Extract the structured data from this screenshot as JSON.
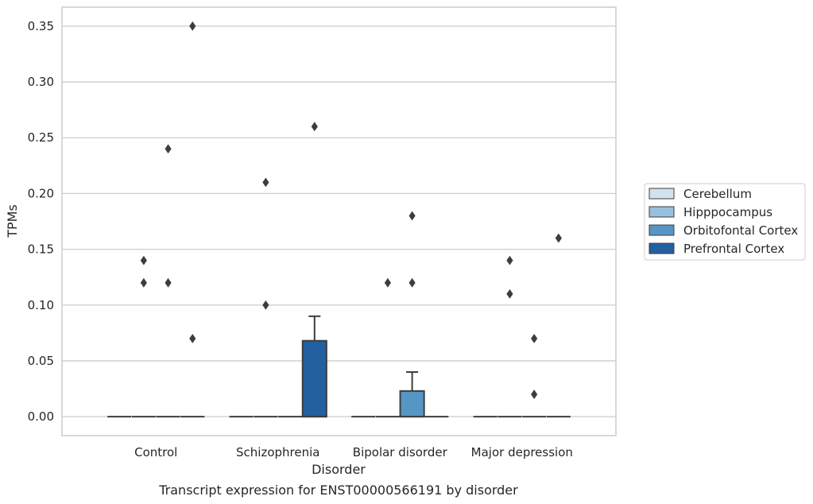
{
  "chart_data": {
    "type": "box",
    "title": "",
    "caption": "Transcript expression for ENST00000566191 by disorder",
    "xlabel": "Disorder",
    "ylabel": "TPMs",
    "ylim": [
      -0.017,
      0.367
    ],
    "yticks": [
      0.0,
      0.05,
      0.1,
      0.15,
      0.2,
      0.25,
      0.3,
      0.35
    ],
    "ytick_labels": [
      "0.00",
      "0.05",
      "0.10",
      "0.15",
      "0.20",
      "0.25",
      "0.30",
      "0.35"
    ],
    "grid": true,
    "legend_position": "right",
    "categories": [
      "Control",
      "Schizophrenia",
      "Bipolar disorder",
      "Major depression"
    ],
    "series": [
      {
        "name": "Cerebellum",
        "color": "#d2e1ef",
        "boxes": [
          {
            "q1": 0,
            "median": 0,
            "q3": 0,
            "whisker_low": 0,
            "whisker_high": 0,
            "outliers": []
          },
          {
            "q1": 0,
            "median": 0,
            "q3": 0,
            "whisker_low": 0,
            "whisker_high": 0,
            "outliers": []
          },
          {
            "q1": 0,
            "median": 0,
            "q3": 0,
            "whisker_low": 0,
            "whisker_high": 0,
            "outliers": []
          },
          {
            "q1": 0,
            "median": 0,
            "q3": 0,
            "whisker_low": 0,
            "whisker_high": 0,
            "outliers": []
          }
        ]
      },
      {
        "name": "Hipppocampus",
        "color": "#98c0dc",
        "boxes": [
          {
            "q1": 0,
            "median": 0,
            "q3": 0,
            "whisker_low": 0,
            "whisker_high": 0,
            "outliers": [
              0.14,
              0.12
            ]
          },
          {
            "q1": 0,
            "median": 0,
            "q3": 0,
            "whisker_low": 0,
            "whisker_high": 0,
            "outliers": [
              0.1,
              0.21
            ]
          },
          {
            "q1": 0,
            "median": 0,
            "q3": 0,
            "whisker_low": 0,
            "whisker_high": 0,
            "outliers": [
              0.12
            ]
          },
          {
            "q1": 0,
            "median": 0,
            "q3": 0,
            "whisker_low": 0,
            "whisker_high": 0,
            "outliers": [
              0.14,
              0.11
            ]
          }
        ]
      },
      {
        "name": "Orbitofontal Cortex",
        "color": "#5596c5",
        "boxes": [
          {
            "q1": 0,
            "median": 0,
            "q3": 0,
            "whisker_low": 0,
            "whisker_high": 0,
            "outliers": [
              0.24,
              0.12
            ]
          },
          {
            "q1": 0,
            "median": 0,
            "q3": 0,
            "whisker_low": 0,
            "whisker_high": 0,
            "outliers": []
          },
          {
            "q1": 0,
            "median": 0,
            "q3": 0.023,
            "whisker_low": 0,
            "whisker_high": 0.04,
            "outliers": [
              0.18,
              0.12
            ]
          },
          {
            "q1": 0,
            "median": 0,
            "q3": 0,
            "whisker_low": 0,
            "whisker_high": 0,
            "outliers": [
              0.07,
              0.02
            ]
          }
        ]
      },
      {
        "name": "Prefrontal Cortex",
        "color": "#2360a0",
        "boxes": [
          {
            "q1": 0,
            "median": 0,
            "q3": 0,
            "whisker_low": 0,
            "whisker_high": 0,
            "outliers": [
              0.35,
              0.07
            ]
          },
          {
            "q1": 0,
            "median": 0,
            "q3": 0.068,
            "whisker_low": 0,
            "whisker_high": 0.09,
            "outliers": [
              0.26
            ]
          },
          {
            "q1": 0,
            "median": 0,
            "q3": 0,
            "whisker_low": 0,
            "whisker_high": 0,
            "outliers": []
          },
          {
            "q1": 0,
            "median": 0,
            "q3": 0,
            "whisker_low": 0,
            "whisker_high": 0,
            "outliers": [
              0.16
            ]
          }
        ]
      }
    ]
  }
}
